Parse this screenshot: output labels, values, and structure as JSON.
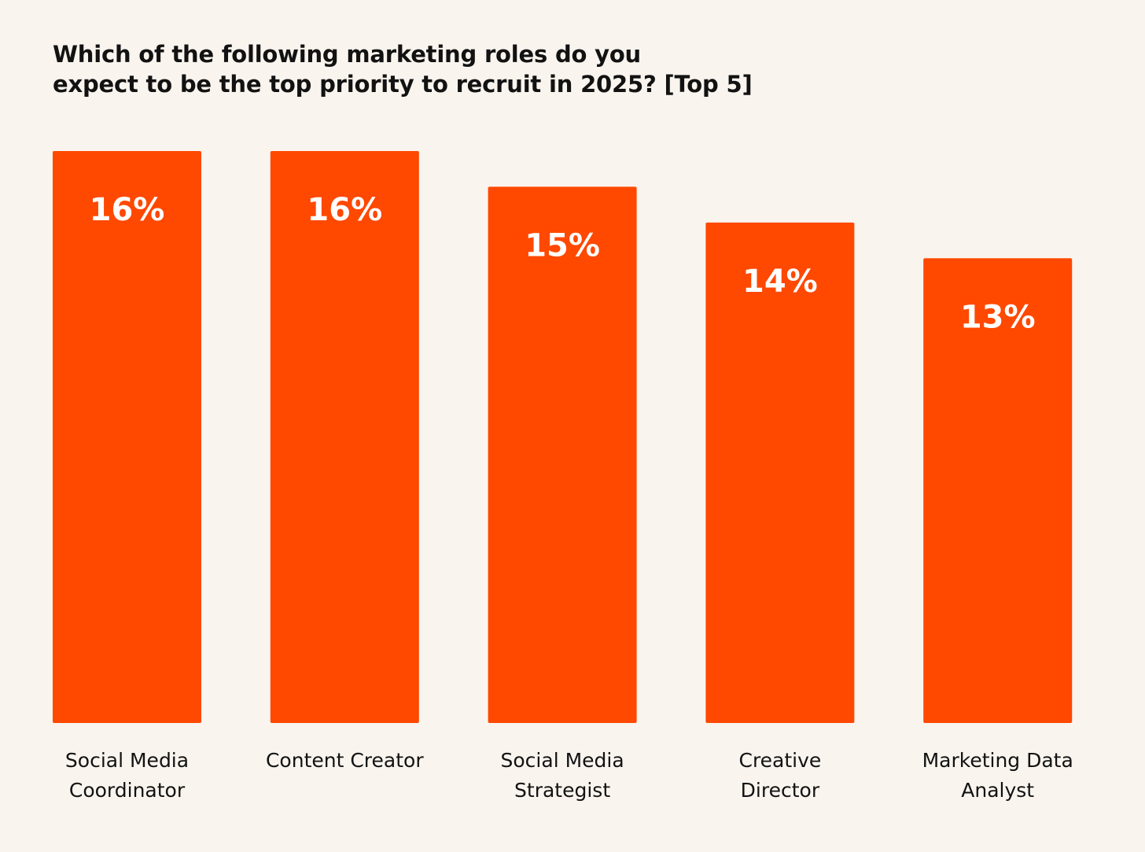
{
  "title_lines": [
    "Which of the following marketing roles do you",
    "expect to be the top priority to recruit in 2025? [Top 5]"
  ],
  "colors": {
    "background": "#f9f4ee",
    "bar": "#ff4800",
    "title": "#121212",
    "value_label": "#ffffff",
    "category_label": "#121212"
  },
  "chart_data": {
    "type": "bar",
    "title": "Which of the following marketing roles do you expect to be the top priority to recruit in 2025? [Top 5]",
    "categories": [
      [
        "Social Media",
        "Coordinator"
      ],
      [
        "Content Creator"
      ],
      [
        "Social Media",
        "Strategist"
      ],
      [
        "Creative",
        "Director"
      ],
      [
        "Marketing Data",
        "Analyst"
      ]
    ],
    "values": [
      16,
      16,
      15,
      14,
      13
    ],
    "value_labels": [
      "16%",
      "16%",
      "15%",
      "14%",
      "13%"
    ],
    "unit": "%",
    "xlabel": "",
    "ylabel": "",
    "ylim": [
      0,
      16
    ],
    "grid": false,
    "legend": "none"
  }
}
